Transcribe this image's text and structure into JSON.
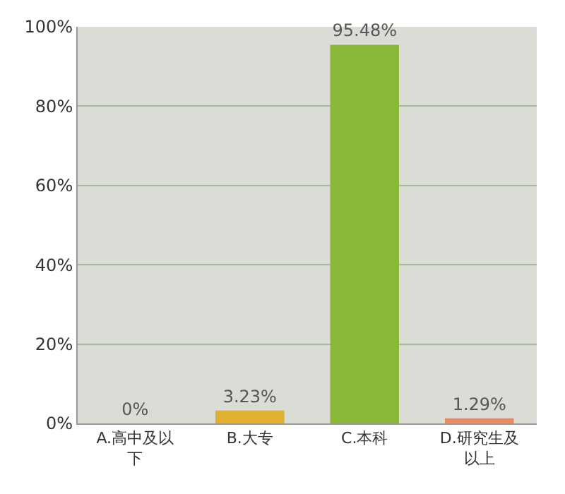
{
  "chart_data": {
    "type": "bar",
    "categories": [
      "A.高中及以下",
      "B.大专",
      "C.本科",
      "D.研究生及以上"
    ],
    "values": [
      0,
      3.23,
      95.48,
      1.29
    ],
    "colors": [
      "#a8c8e8",
      "#e0b030",
      "#8ab838",
      "#f08860"
    ],
    "value_labels": [
      "0%",
      "3.23%",
      "95.48%",
      "1.29%"
    ],
    "ylim": [
      0,
      100
    ],
    "yticks": [
      {
        "value": 0,
        "label": "0%"
      },
      {
        "value": 20,
        "label": "20%"
      },
      {
        "value": 40,
        "label": "40%"
      },
      {
        "value": 60,
        "label": "60%"
      },
      {
        "value": 80,
        "label": "80%"
      },
      {
        "value": 100,
        "label": "100%"
      }
    ],
    "grid": "y"
  }
}
